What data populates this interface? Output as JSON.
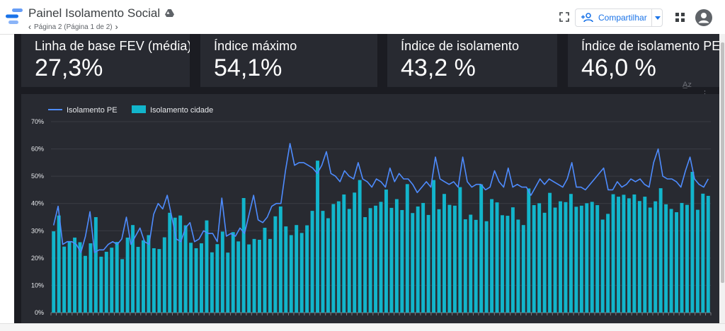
{
  "header": {
    "title": "Painel Isolamento Social",
    "page_info": "Página 2 (Página 1 de 2)",
    "share_label": "Compartilhar"
  },
  "kpis": [
    {
      "label": "Linha de base FEV (média)",
      "value": "27,3%"
    },
    {
      "label": "Índice máximo",
      "value": "54,1%"
    },
    {
      "label": "Índice de isolamento",
      "value": "43,2 %"
    },
    {
      "label": "Índice de isolamento PE",
      "value": "46,0 %"
    }
  ],
  "chart_data": {
    "type": "bar",
    "ylim": [
      0,
      70
    ],
    "yticks": [
      "70%",
      "60%",
      "50%",
      "40%",
      "30%",
      "20%",
      "10%",
      "0%"
    ],
    "grid": true,
    "legend_position": "top-left",
    "colors": {
      "line": "#4e8cff",
      "bar": "#12b5cb"
    },
    "series": [
      {
        "name": "Isolamento PE",
        "kind": "line",
        "values": [
          32,
          39,
          25,
          26,
          26,
          25,
          22,
          28,
          37,
          22,
          23,
          23,
          25,
          26,
          25,
          27,
          35,
          25,
          28,
          31,
          26,
          25,
          36,
          40,
          38,
          43,
          35,
          27,
          26,
          31,
          33,
          26,
          27,
          30,
          29,
          29,
          26,
          42,
          28,
          29,
          28,
          31,
          29,
          36,
          43,
          34,
          33,
          35,
          39,
          40,
          40,
          52,
          62,
          54,
          55,
          55,
          54,
          53,
          51,
          54,
          59,
          51,
          50,
          48,
          52,
          50,
          49,
          55,
          49,
          48,
          46,
          49,
          48,
          46,
          53,
          48,
          51,
          49,
          49,
          47,
          44,
          46,
          48,
          46,
          57,
          49,
          48,
          47,
          48,
          46,
          57,
          48,
          46,
          47,
          47,
          45,
          46,
          52,
          48,
          46,
          53,
          46,
          47,
          46,
          46,
          43,
          46,
          49,
          47,
          49,
          48,
          47,
          46,
          49,
          55,
          46,
          46,
          45,
          47,
          49,
          51,
          53,
          45,
          45,
          48,
          46,
          47,
          49,
          48,
          49,
          47,
          46,
          55,
          60,
          50,
          49,
          49,
          48,
          46,
          52,
          57,
          49,
          47,
          46,
          49
        ]
      },
      {
        "name": "Isolamento cidade",
        "kind": "bar",
        "values": [
          29.8,
          35.6,
          24.2,
          26.2,
          27.5,
          25.8,
          20.8,
          25.4,
          35.0,
          20.5,
          22.3,
          23.8,
          25.9,
          19.6,
          27.5,
          32.1,
          24.1,
          26.5,
          28.4,
          23.6,
          23.3,
          27.6,
          36.6,
          34.8,
          35.6,
          32.0,
          25.6,
          23.6,
          25.4,
          33.8,
          22.1,
          25.1,
          29.7,
          22.0,
          29.5,
          26.1,
          42.0,
          25.0,
          27.0,
          26.7,
          31.1,
          27.0,
          35.3,
          38.9,
          31.6,
          28.4,
          32.1,
          29.2,
          32.0,
          37.3,
          55.7,
          37.3,
          34.6,
          39.8,
          40.8,
          43.3,
          38.0,
          44.0,
          48.6,
          35.0,
          38.3,
          39.2,
          40.6,
          45.1,
          38.4,
          41.6,
          37.6,
          47.1,
          36.5,
          38.9,
          40.2,
          35.8,
          48.6,
          37.9,
          43.5,
          39.5,
          39.2,
          46.0,
          34.2,
          35.9,
          34.0,
          47.0,
          33.5,
          41.6,
          40.4,
          35.7,
          35.5,
          38.6,
          34.1,
          32.1,
          45.5,
          39.4,
          40.1,
          36.6,
          43.9,
          38.5,
          40.8,
          40.5,
          43.5,
          38.8,
          39.2,
          40.1,
          40.6,
          39.4,
          34.1,
          36.2,
          43.4,
          42.5,
          43.2,
          41.9,
          43.3,
          40.9,
          42.5,
          38.5,
          40.8,
          45.6,
          39.7,
          38.0,
          36.8,
          40.2,
          39.5,
          51.6,
          37.7,
          43.6,
          42.8
        ]
      }
    ]
  }
}
